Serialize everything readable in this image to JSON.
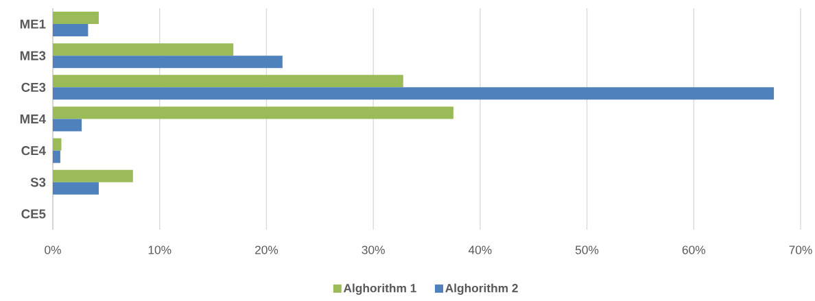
{
  "chart_data": {
    "type": "bar",
    "orientation": "horizontal",
    "categories": [
      "ME1",
      "ME3",
      "CE3",
      "ME4",
      "CE4",
      "S3",
      "CE5"
    ],
    "series": [
      {
        "name": "Alghorithm 1",
        "color": "#9bbb59",
        "values": [
          4.3,
          16.9,
          32.8,
          37.5,
          0.8,
          7.5,
          0
        ]
      },
      {
        "name": "Alghorithm 2",
        "color": "#4f81bd",
        "values": [
          3.3,
          21.5,
          67.5,
          2.7,
          0.7,
          4.3,
          0
        ]
      }
    ],
    "xlim": [
      0,
      70
    ],
    "xticks": [
      {
        "value": 0,
        "label": "0%"
      },
      {
        "value": 10,
        "label": "10%"
      },
      {
        "value": 20,
        "label": "20%"
      },
      {
        "value": 30,
        "label": "30%"
      },
      {
        "value": 40,
        "label": "40%"
      },
      {
        "value": 50,
        "label": "50%"
      },
      {
        "value": 60,
        "label": "60%"
      },
      {
        "value": 70,
        "label": "70%"
      }
    ],
    "grid": "x",
    "legend": "bottom"
  }
}
